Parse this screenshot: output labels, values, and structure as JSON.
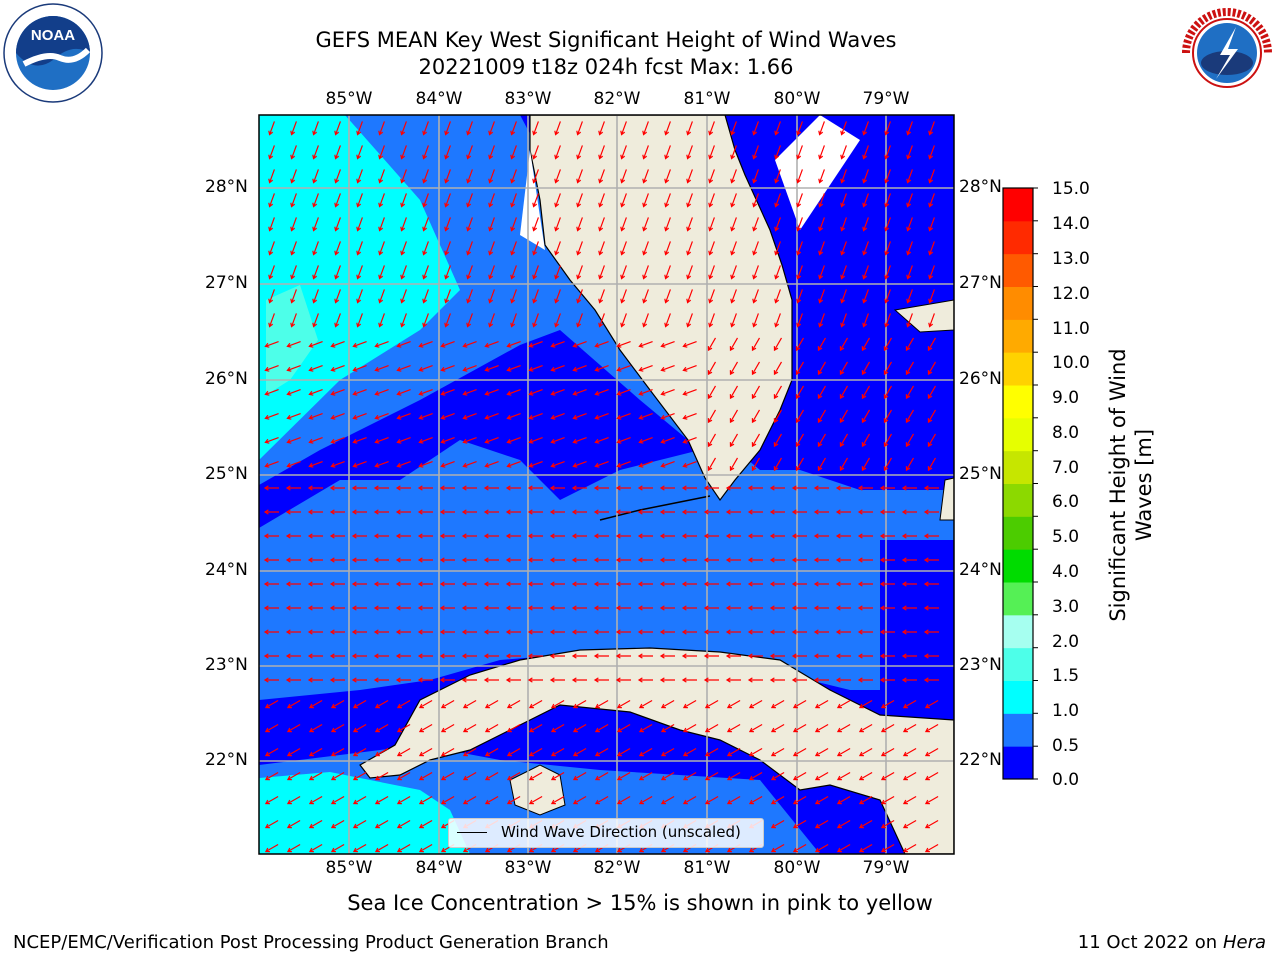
{
  "title": {
    "line1": "GEFS MEAN Key West Significant Height of Wind Waves",
    "line2": "20221009 t18z 024h fcst   Max: 1.66"
  },
  "axes": {
    "lon_labels": [
      "85°W",
      "84°W",
      "83°W",
      "82°W",
      "81°W",
      "80°W",
      "79°W"
    ],
    "lat_labels": [
      "28°N",
      "27°N",
      "26°N",
      "25°N",
      "24°N",
      "23°N",
      "22°N"
    ]
  },
  "legend": {
    "label": "Wind Wave Direction (unscaled)"
  },
  "colorbar": {
    "label_line1": "Significant Height of Wind",
    "label_line2": "Waves [m]",
    "ticks": [
      "15.0",
      "14.0",
      "13.0",
      "12.0",
      "11.0",
      "10.0",
      "9.0",
      "8.0",
      "7.0",
      "6.0",
      "5.0",
      "4.0",
      "3.0",
      "2.0",
      "1.5",
      "1.0",
      "0.5",
      "0.0"
    ],
    "colors": [
      "#0000ff",
      "#1e78ff",
      "#00ffff",
      "#4dffe9",
      "#a6fff0",
      "#55f055",
      "#00dc00",
      "#4ccc00",
      "#8cd900",
      "#c6e600",
      "#e6ff00",
      "#ffff00",
      "#ffd200",
      "#ffaa00",
      "#ff8c00",
      "#ff5a00",
      "#ff2a00",
      "#ff0000"
    ]
  },
  "note": "Sea Ice Concentration > 15% is shown in pink to yellow",
  "footer": {
    "left": "NCEP/EMC/Verification Post Processing Product Generation Branch",
    "right_prefix": "11 Oct 2022 on ",
    "right_host": "Hera"
  },
  "logos": {
    "left": "NOAA",
    "right": "NATIONAL WEATHER SERVICE"
  },
  "colors": {
    "land": "#efecdc",
    "arrow": "#ff0000",
    "grid": "#b0b0b0"
  }
}
